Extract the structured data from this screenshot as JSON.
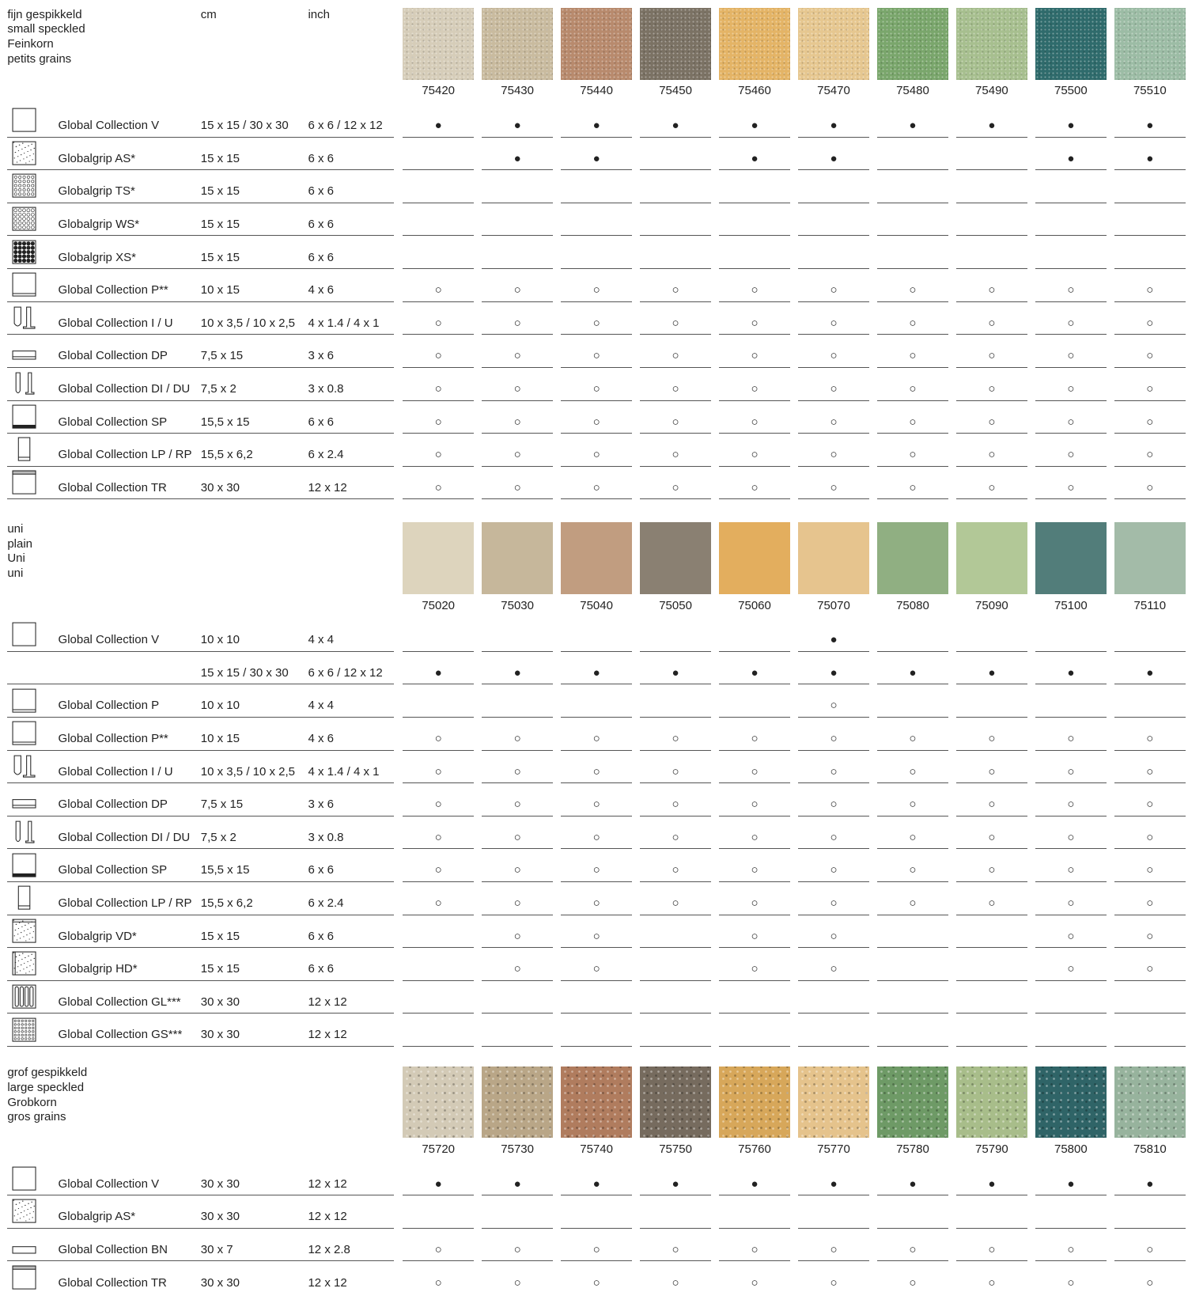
{
  "sections": [
    {
      "label": [
        "fijn gespikkeld",
        "small speckled",
        "Feinkorn",
        "petits grains"
      ],
      "headers": [
        "cm",
        "inch"
      ],
      "swatches": [
        {
          "code": "75420",
          "color": "#d6cdb9"
        },
        {
          "code": "75430",
          "color": "#c9bb9f"
        },
        {
          "code": "75440",
          "color": "#b88a6d"
        },
        {
          "code": "75450",
          "color": "#7b7264"
        },
        {
          "code": "75460",
          "color": "#e4b466"
        },
        {
          "code": "75470",
          "color": "#e6c790"
        },
        {
          "code": "75480",
          "color": "#7aa66c"
        },
        {
          "code": "75490",
          "color": "#a7bf8f"
        },
        {
          "code": "75500",
          "color": "#2f6b6c"
        },
        {
          "code": "75510",
          "color": "#9cbca5"
        }
      ],
      "rows": [
        {
          "name": "Global Collection V",
          "cm": "15 x 15 / 30 x 30",
          "inch": "6 x 6 / 12 x 12",
          "marks": [
            "●",
            "●",
            "●",
            "●",
            "●",
            "●",
            "●",
            "●",
            "●",
            "●"
          ]
        },
        {
          "name": "Globalgrip AS*",
          "cm": "15 x 15",
          "inch": "6 x 6",
          "marks": [
            null,
            "●",
            "●",
            null,
            "●",
            "●",
            null,
            null,
            "●",
            "●"
          ]
        },
        {
          "name": "Globalgrip TS*",
          "cm": "15 x 15",
          "inch": "6 x 6",
          "marks": [
            null,
            null,
            null,
            null,
            null,
            null,
            null,
            null,
            null,
            null
          ]
        },
        {
          "name": "Globalgrip WS*",
          "cm": "15 x 15",
          "inch": "6 x 6",
          "marks": [
            null,
            null,
            null,
            null,
            null,
            null,
            null,
            null,
            null,
            null
          ]
        },
        {
          "name": "Globalgrip XS*",
          "cm": "15 x 15",
          "inch": "6 x 6",
          "marks": [
            null,
            null,
            null,
            null,
            null,
            null,
            null,
            null,
            null,
            null
          ]
        },
        {
          "name": "Global Collection P**",
          "cm": "10 x 15",
          "inch": "4 x 6",
          "marks": [
            "○",
            "○",
            "○",
            "○",
            "○",
            "○",
            "○",
            "○",
            "○",
            "○"
          ]
        },
        {
          "name": "Global Collection I / U",
          "cm": "10 x 3,5 / 10 x 2,5",
          "inch": "4 x 1.4 / 4 x 1",
          "marks": [
            "○",
            "○",
            "○",
            "○",
            "○",
            "○",
            "○",
            "○",
            "○",
            "○"
          ]
        },
        {
          "name": "Global Collection DP",
          "cm": "7,5 x 15",
          "inch": "3 x 6",
          "marks": [
            "○",
            "○",
            "○",
            "○",
            "○",
            "○",
            "○",
            "○",
            "○",
            "○"
          ]
        },
        {
          "name": "Global Collection DI / DU",
          "cm": "7,5 x 2",
          "inch": "3 x 0.8",
          "marks": [
            "○",
            "○",
            "○",
            "○",
            "○",
            "○",
            "○",
            "○",
            "○",
            "○"
          ]
        },
        {
          "name": "Global Collection SP",
          "cm": "15,5 x 15",
          "inch": "6 x 6",
          "marks": [
            "○",
            "○",
            "○",
            "○",
            "○",
            "○",
            "○",
            "○",
            "○",
            "○"
          ]
        },
        {
          "name": "Global Collection LP / RP",
          "cm": "15,5 x 6,2",
          "inch": "6 x 2.4",
          "marks": [
            "○",
            "○",
            "○",
            "○",
            "○",
            "○",
            "○",
            "○",
            "○",
            "○"
          ]
        },
        {
          "name": "Global Collection TR",
          "cm": "30 x 30",
          "inch": "12 x 12",
          "marks": [
            "○",
            "○",
            "○",
            "○",
            "○",
            "○",
            "○",
            "○",
            "○",
            "○"
          ]
        }
      ]
    },
    {
      "label": [
        "uni",
        "plain",
        "Uni",
        "uni"
      ],
      "swatches": [
        {
          "code": "75020",
          "color": "#ddd4bd"
        },
        {
          "code": "75030",
          "color": "#c6b79b"
        },
        {
          "code": "75040",
          "color": "#c19d80"
        },
        {
          "code": "75050",
          "color": "#8a8072"
        },
        {
          "code": "75060",
          "color": "#e3ae5e"
        },
        {
          "code": "75070",
          "color": "#e6c48e"
        },
        {
          "code": "75080",
          "color": "#90af82"
        },
        {
          "code": "75090",
          "color": "#b2c897"
        },
        {
          "code": "75100",
          "color": "#527d7a"
        },
        {
          "code": "75110",
          "color": "#a3bba8"
        }
      ],
      "rows": [
        {
          "name": "Global Collection V",
          "cm": "10 x 10",
          "inch": "4 x 4",
          "marks": [
            null,
            null,
            null,
            null,
            null,
            "●",
            null,
            null,
            null,
            null
          ]
        },
        {
          "cm": "15 x 15 / 30 x 30",
          "inch": "6 x 6 / 12 x 12",
          "marks": [
            "●",
            "●",
            "●",
            "●",
            "●",
            "●",
            "●",
            "●",
            "●",
            "●"
          ]
        },
        {
          "name": "Global Collection P",
          "cm": "10 x 10",
          "inch": "4 x 4",
          "marks": [
            null,
            null,
            null,
            null,
            null,
            "○",
            null,
            null,
            null,
            null
          ]
        },
        {
          "name": "Global Collection P**",
          "cm": "10 x 15",
          "inch": "4 x 6",
          "marks": [
            "○",
            "○",
            "○",
            "○",
            "○",
            "○",
            "○",
            "○",
            "○",
            "○"
          ]
        },
        {
          "name": "Global Collection I / U",
          "cm": "10 x 3,5 / 10 x 2,5",
          "inch": "4 x 1.4 / 4 x 1",
          "marks": [
            "○",
            "○",
            "○",
            "○",
            "○",
            "○",
            "○",
            "○",
            "○",
            "○"
          ]
        },
        {
          "name": "Global Collection DP",
          "cm": "7,5 x 15",
          "inch": "3 x 6",
          "marks": [
            "○",
            "○",
            "○",
            "○",
            "○",
            "○",
            "○",
            "○",
            "○",
            "○"
          ]
        },
        {
          "name": "Global Collection DI / DU",
          "cm": "7,5 x 2",
          "inch": "3 x 0.8",
          "marks": [
            "○",
            "○",
            "○",
            "○",
            "○",
            "○",
            "○",
            "○",
            "○",
            "○"
          ]
        },
        {
          "name": "Global Collection SP",
          "cm": "15,5 x 15",
          "inch": "6 x 6",
          "marks": [
            "○",
            "○",
            "○",
            "○",
            "○",
            "○",
            "○",
            "○",
            "○",
            "○"
          ]
        },
        {
          "name": "Global Collection LP / RP",
          "cm": "15,5 x 6,2",
          "inch": "6 x 2.4",
          "marks": [
            "○",
            "○",
            "○",
            "○",
            "○",
            "○",
            "○",
            "○",
            "○",
            "○"
          ]
        },
        {
          "name": "Globalgrip VD*",
          "cm": "15 x 15",
          "inch": "6 x 6",
          "marks": [
            null,
            "○",
            "○",
            null,
            "○",
            "○",
            null,
            null,
            "○",
            "○"
          ]
        },
        {
          "name": "Globalgrip HD*",
          "cm": "15 x 15",
          "inch": "6 x 6",
          "marks": [
            null,
            "○",
            "○",
            null,
            "○",
            "○",
            null,
            null,
            "○",
            "○"
          ]
        },
        {
          "name": "Global Collection GL***",
          "cm": "30 x 30",
          "inch": "12 x 12",
          "marks": [
            null,
            null,
            null,
            null,
            null,
            null,
            null,
            null,
            null,
            null
          ]
        },
        {
          "name": "Global Collection GS***",
          "cm": "30 x 30",
          "inch": "12 x 12",
          "marks": [
            null,
            null,
            null,
            null,
            null,
            null,
            null,
            null,
            null,
            null
          ]
        }
      ]
    },
    {
      "label": [
        "grof gespikkeld",
        "large speckled",
        "Grobkorn",
        "gros grains"
      ],
      "swatches": [
        {
          "code": "75720",
          "color": "#d3cab6"
        },
        {
          "code": "75730",
          "color": "#b9a687"
        },
        {
          "code": "75740",
          "color": "#b07c5e"
        },
        {
          "code": "75750",
          "color": "#766b5e"
        },
        {
          "code": "75760",
          "color": "#d7a75a"
        },
        {
          "code": "75770",
          "color": "#e5c38c"
        },
        {
          "code": "75780",
          "color": "#6e9a66"
        },
        {
          "code": "75790",
          "color": "#a8bd8a"
        },
        {
          "code": "75800",
          "color": "#2f6467"
        },
        {
          "code": "75810",
          "color": "#97b39d"
        }
      ],
      "rows": [
        {
          "name": "Global Collection V",
          "cm": "30 x 30",
          "inch": "12 x 12",
          "marks": [
            "●",
            "●",
            "●",
            "●",
            "●",
            "●",
            "●",
            "●",
            "●",
            "●"
          ]
        },
        {
          "name": "Globalgrip AS*",
          "cm": "30 x 30",
          "inch": "12 x 12",
          "marks": [
            null,
            null,
            null,
            null,
            null,
            null,
            null,
            null,
            null,
            null
          ]
        },
        {
          "name": "Global Collection BN",
          "cm": "30 x 7",
          "inch": "12 x 2.8",
          "marks": [
            "○",
            "○",
            "○",
            "○",
            "○",
            "○",
            "○",
            "○",
            "○",
            "○"
          ]
        },
        {
          "name": "Global Collection TR",
          "cm": "30 x 30",
          "inch": "12 x 12",
          "marks": [
            "○",
            "○",
            "○",
            "○",
            "○",
            "○",
            "○",
            "○",
            "○",
            "○"
          ]
        }
      ]
    }
  ]
}
